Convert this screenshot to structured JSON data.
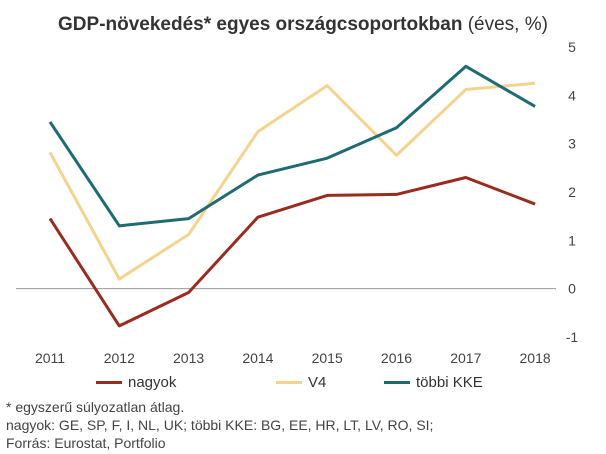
{
  "title": {
    "bold": "GDP-növekedés* egyes országcsoportokban",
    "normal": " (éves, %)"
  },
  "chart_data": {
    "type": "line",
    "title": "GDP-növekedés* egyes országcsoportokban (éves, %)",
    "xlabel": "",
    "ylabel": "",
    "categories": [
      "2011",
      "2012",
      "2013",
      "2014",
      "2015",
      "2016",
      "2017",
      "2018"
    ],
    "ylim": [
      -1,
      5
    ],
    "yticks": [
      "-1",
      "0",
      "1",
      "2",
      "3",
      "4",
      "5"
    ],
    "grid": false,
    "legend_position": "bottom",
    "series": [
      {
        "name": "nagyok",
        "color": "#9b2b1f",
        "values": [
          1.45,
          -0.77,
          -0.08,
          1.48,
          1.93,
          1.95,
          2.3,
          1.75
        ]
      },
      {
        "name": "V4",
        "color": "#f3d48f",
        "values": [
          2.82,
          0.2,
          1.12,
          3.25,
          4.2,
          2.76,
          4.12,
          4.25
        ]
      },
      {
        "name": "többi KKE",
        "color": "#1f6b73",
        "values": [
          3.45,
          1.3,
          1.45,
          2.35,
          2.7,
          3.33,
          4.6,
          3.77
        ]
      }
    ]
  },
  "notes": [
    "* egyszerű súlyozatlan átlag.",
    "nagyok: GE, SP, F, I, NL, UK; többi KKE: BG, EE, HR, LT, LV, RO, SI;",
    "Forrás: Eurostat, Portfolio"
  ]
}
